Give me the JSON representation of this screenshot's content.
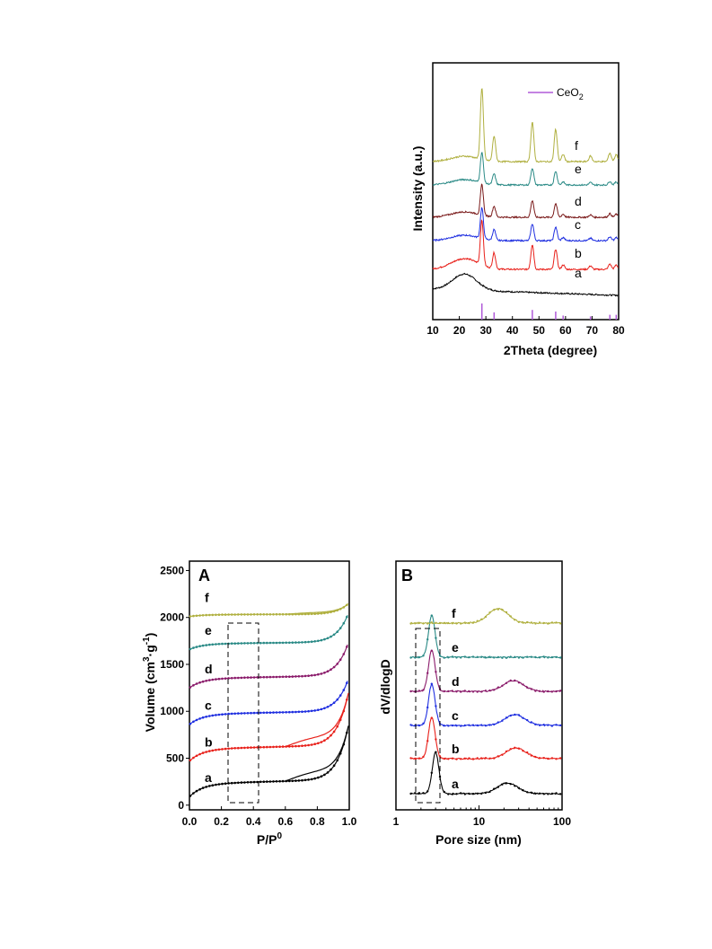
{
  "chart_data": [
    {
      "type": "line",
      "xlabel": "2Theta (degree)",
      "ylabel": "Intensity (a.u.)",
      "xlim": [
        10,
        80
      ],
      "x_ticks": [
        "10",
        "20",
        "30",
        "40",
        "50",
        "60",
        "70",
        "80"
      ],
      "legend": {
        "label": "CeO",
        "subscript": "2",
        "color": "#b05ad8",
        "placement": "top-right"
      },
      "reference_peaks": [
        28.5,
        33.1,
        47.5,
        56.3,
        59.1,
        69.4,
        76.7,
        79.1
      ],
      "series": [
        {
          "name": "a",
          "color": "#000000"
        },
        {
          "name": "b",
          "color": "#e8201a"
        },
        {
          "name": "c",
          "color": "#1f2fe0"
        },
        {
          "name": "d",
          "color": "#7a1a1a"
        },
        {
          "name": "e",
          "color": "#2a8a86"
        },
        {
          "name": "f",
          "color": "#b0b040"
        }
      ]
    },
    {
      "type": "line",
      "panel_label": "A",
      "xlabel": "P/P",
      "xlabel_sup": "0",
      "ylabel": "Volume (cm",
      "ylabel_sup1": "3",
      "ylabel_mid": "·g",
      "ylabel_sup2": "-1",
      "ylabel_end": ")",
      "xlim": [
        0.0,
        1.0
      ],
      "ylim": [
        -50,
        2600
      ],
      "x_ticks": [
        "0.0",
        "0.2",
        "0.4",
        "0.6",
        "0.8",
        "1.0"
      ],
      "y_ticks": [
        "0",
        "500",
        "1000",
        "1500",
        "2000",
        "2500"
      ],
      "x_tick_values": [
        0.0,
        0.2,
        0.4,
        0.6,
        0.8,
        1.0
      ],
      "y_tick_values": [
        0,
        500,
        1000,
        1500,
        2000,
        2500
      ],
      "series": [
        {
          "name": "a",
          "color": "#000000",
          "start": 90,
          "plateau": 230,
          "end": 850,
          "hysteresis": true
        },
        {
          "name": "b",
          "color": "#e8201a",
          "start": 470,
          "plateau": 600,
          "end": 1200,
          "hysteresis": true
        },
        {
          "name": "c",
          "color": "#1f2fe0",
          "start": 860,
          "plateau": 970,
          "end": 1340,
          "hysteresis": false
        },
        {
          "name": "d",
          "color": "#8a1a6a",
          "start": 1250,
          "plateau": 1350,
          "end": 1730,
          "hysteresis": false
        },
        {
          "name": "e",
          "color": "#2a8a86",
          "start": 1660,
          "plateau": 1720,
          "end": 2050,
          "hysteresis": false
        },
        {
          "name": "f",
          "color": "#b0b040",
          "start": 2010,
          "plateau": 2030,
          "end": 2150,
          "hysteresis": true
        }
      ]
    },
    {
      "type": "line",
      "panel_label": "B",
      "xlabel": "Pore size (nm)",
      "ylabel": "dV/dlogD",
      "xlim": [
        1,
        100
      ],
      "x_scale": "log",
      "x_ticks": [
        "1",
        "10",
        "100"
      ],
      "x_tick_values": [
        1,
        10,
        100
      ],
      "series": [
        {
          "name": "a",
          "color": "#000000",
          "peak_nm": 3.0,
          "peak2_nm": 22
        },
        {
          "name": "b",
          "color": "#e8201a",
          "peak_nm": 2.7,
          "peak2_nm": 28
        },
        {
          "name": "c",
          "color": "#1f2fe0",
          "peak_nm": 2.7,
          "peak2_nm": 27
        },
        {
          "name": "d",
          "color": "#8a1a6a",
          "peak_nm": 2.7,
          "peak2_nm": 26
        },
        {
          "name": "e",
          "color": "#2a8a86",
          "peak_nm": 2.7,
          "peak2_nm": 0
        },
        {
          "name": "f",
          "color": "#b0b040",
          "peak_nm": 0,
          "peak2_nm": 17
        }
      ]
    }
  ]
}
